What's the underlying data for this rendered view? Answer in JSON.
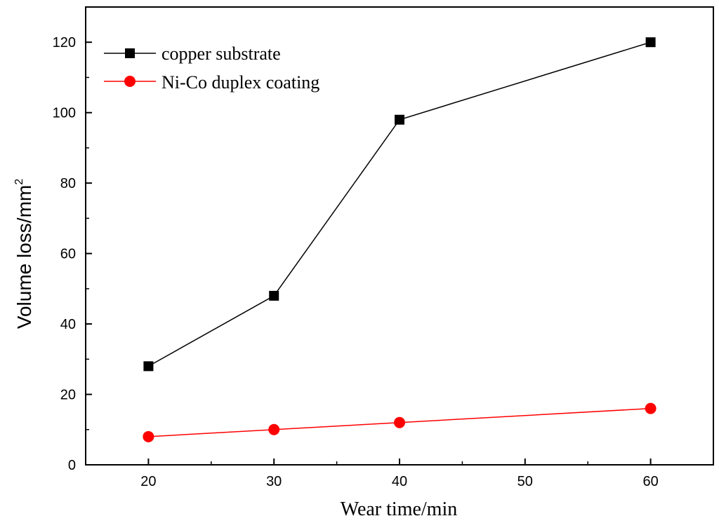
{
  "chart_data": {
    "type": "line",
    "xlabel": "Wear time/min",
    "ylabel": "Volume loss/mm",
    "ylabel_superscript": "2",
    "xlim": [
      15,
      65
    ],
    "ylim": [
      0,
      130
    ],
    "xticks": [
      20,
      30,
      40,
      50,
      60
    ],
    "yticks": [
      0,
      20,
      40,
      60,
      80,
      100,
      120
    ],
    "xtick_labels": [
      "20",
      "30",
      "40",
      "50",
      "60"
    ],
    "ytick_labels": [
      "0",
      "20",
      "40",
      "60",
      "80",
      "100",
      "120"
    ],
    "grid": false,
    "legend_position": "top-left",
    "series": [
      {
        "name": "copper substrate",
        "marker": "square",
        "color": "#000000",
        "x": [
          20,
          30,
          40,
          60
        ],
        "y": [
          28,
          48,
          98,
          120
        ]
      },
      {
        "name": "Ni-Co duplex coating",
        "marker": "circle",
        "color": "#ff0000",
        "x": [
          20,
          30,
          40,
          60
        ],
        "y": [
          8,
          10,
          12,
          16
        ]
      }
    ]
  }
}
